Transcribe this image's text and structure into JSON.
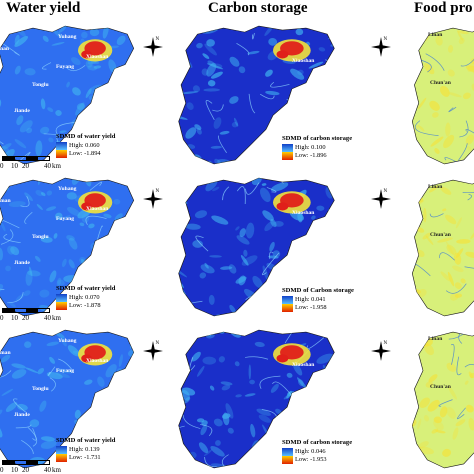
{
  "headers": {
    "water_yield": "Water yield",
    "carbon_storage": "Carbon storage",
    "food_production": "Food pro"
  },
  "colors": {
    "deep_blue": "#1a2fc9",
    "mid_blue": "#2f6ff0",
    "cyan": "#3fb0f0",
    "hot_red": "#e0201a",
    "yellow": "#f4e23a",
    "pale_green": "#d8f07a"
  },
  "compass_label": "N",
  "scale_unit": "km",
  "scale_ticks": [
    "0",
    "10",
    "20",
    "40"
  ],
  "place_names": {
    "yuhang": "Yuhang",
    "xiaoshan": "Xiaoshan",
    "fuyang": "Fuyang",
    "tonglu": "Tonglu",
    "jiande": "Jiande",
    "linan": "Lin'an",
    "chunan": "Chun'an",
    "linan_short": "Linan",
    "left_edge_1": "nan",
    "left_edge_3": "man"
  },
  "legend_high_label": "High:",
  "legend_low_label": "Low:",
  "rows": [
    {
      "water_yield": {
        "title": "SDMD of water yield",
        "high": "0.060",
        "low": "-1.894"
      },
      "carbon_storage": {
        "title": "SDMD of carbon storage",
        "high": "0.100",
        "low": "-1.896"
      }
    },
    {
      "water_yield": {
        "title": "SDMD of water yield",
        "high": "0.070",
        "low": "-1.878"
      },
      "carbon_storage": {
        "title": "SDMD of Carbon storage",
        "high": "0.041",
        "low": "-1.958"
      }
    },
    {
      "water_yield": {
        "title": "SDMD of water yield",
        "high": "0.139",
        "low": "-1.731"
      },
      "carbon_storage": {
        "title": "SDMD of carbon storage",
        "high": "0.046",
        "low": "-1.953"
      }
    }
  ]
}
